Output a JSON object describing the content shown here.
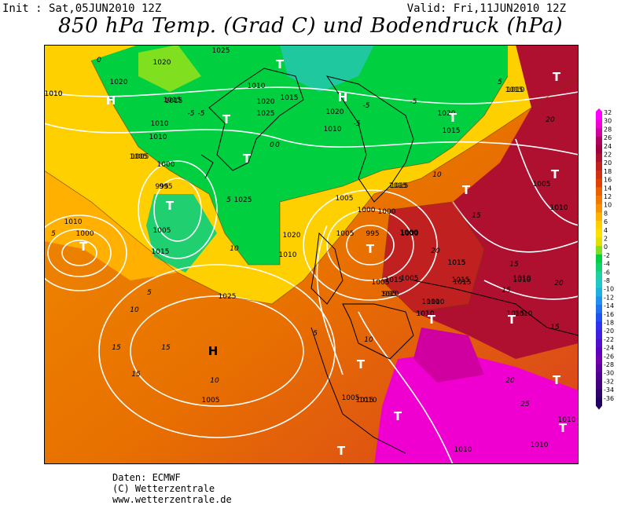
{
  "header": {
    "init": "Init : Sat,05JUN2010 12Z",
    "valid": "Valid: Fri,11JUN2010 12Z",
    "title": "850 hPa Temp. (Grad C) und Bodendruck (hPa)"
  },
  "legend": {
    "values": [
      "32",
      "30",
      "28",
      "26",
      "24",
      "22",
      "20",
      "18",
      "16",
      "14",
      "12",
      "10",
      "8",
      "6",
      "4",
      "2",
      "0",
      "-2",
      "-4",
      "-6",
      "-8",
      "-10",
      "-12",
      "-14",
      "-16",
      "-18",
      "-20",
      "-22",
      "-24",
      "-26",
      "-28",
      "-30",
      "-32",
      "-34",
      "-36"
    ],
    "colors": [
      "#ff00ff",
      "#f000d0",
      "#d000a0",
      "#b00060",
      "#a00040",
      "#b01030",
      "#c02020",
      "#d03010",
      "#e04000",
      "#e86000",
      "#f07800",
      "#f89000",
      "#ffb000",
      "#ffd000",
      "#ffe000",
      "#e0e000",
      "#80e020",
      "#00d040",
      "#10d070",
      "#20d0a0",
      "#20c8c8",
      "#20b0e0",
      "#2090f0",
      "#2070f0",
      "#2050f0",
      "#3030f0",
      "#4020e0",
      "#5010d0",
      "#6000c0",
      "#7000b0",
      "#6000a0",
      "#500090",
      "#400080",
      "#300070",
      "#200060"
    ]
  },
  "map": {
    "isobars": [
      "1010",
      "1020",
      "1015",
      "1005",
      "1010",
      "1025",
      "1020",
      "1015",
      "1010",
      "1005",
      "1010",
      "1025",
      "1020",
      "1015",
      "1010",
      "1000",
      "995",
      "995",
      "1000",
      "1005",
      "1010",
      "1015",
      "1020",
      "1025",
      "1005",
      "1000",
      "995",
      "1000",
      "1005",
      "1010",
      "1015",
      "1020",
      "1025",
      "1010",
      "1015",
      "1010",
      "1015",
      "1005",
      "1010",
      "1015",
      "1010",
      "1015",
      "1010",
      "1005",
      "1000",
      "1000",
      "1005",
      "1010",
      "1015",
      "1020",
      "1015",
      "1010",
      "1005",
      "995",
      "1000",
      "1010",
      "1015",
      "1010",
      "1005",
      "1010",
      "1010",
      "1015",
      "1010",
      "1015",
      "1010",
      "1010",
      "1015",
      "1010",
      "1010",
      "1015",
      "1010"
    ],
    "isotherms": [
      "0",
      "0",
      "-5",
      "-5",
      "-5",
      "-5",
      "5",
      "5",
      "5",
      "5",
      "10",
      "10",
      "10",
      "10",
      "15",
      "15",
      "15",
      "15",
      "15",
      "15",
      "20",
      "20",
      "20",
      "25",
      "20",
      "10",
      "15",
      "5",
      "-5",
      "0"
    ],
    "pressure_centers": [
      "H",
      "H",
      "T",
      "T",
      "T",
      "T",
      "T",
      "T",
      "T",
      "T",
      "T",
      "T",
      "T",
      "T",
      "T",
      "H",
      "T",
      "T",
      "T",
      "T"
    ]
  },
  "credits": {
    "line1": "Daten: ECMWF",
    "line2": "(C) Wetterzentrale",
    "line3": "www.wetterzentrale.de"
  }
}
